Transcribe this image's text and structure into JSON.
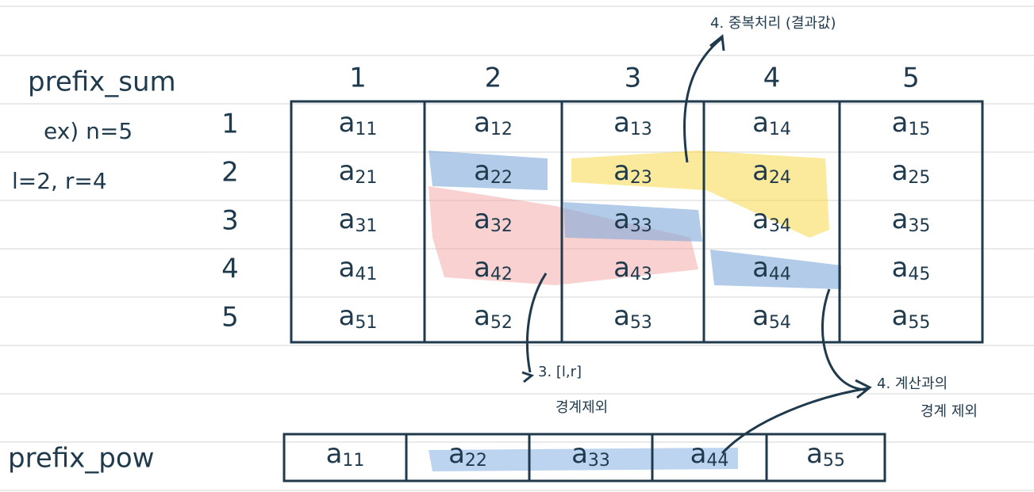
{
  "title": "prefix_sum",
  "example": [
    "ex) n=5",
    "l=2, r=4"
  ],
  "column_headers": [
    "1",
    "2",
    "3",
    "4",
    "5"
  ],
  "row_headers": [
    "1",
    "2",
    "3",
    "4",
    "5"
  ],
  "matrix": [
    [
      {
        "letter": "a",
        "index": "11"
      },
      {
        "letter": "a",
        "index": "12"
      },
      {
        "letter": "a",
        "index": "13"
      },
      {
        "letter": "a",
        "index": "14"
      },
      {
        "letter": "a",
        "index": "15"
      }
    ],
    [
      {
        "letter": "a",
        "index": "21"
      },
      {
        "letter": "a",
        "index": "22"
      },
      {
        "letter": "a",
        "index": "23"
      },
      {
        "letter": "a",
        "index": "24"
      },
      {
        "letter": "a",
        "index": "25"
      }
    ],
    [
      {
        "letter": "a",
        "index": "31"
      },
      {
        "letter": "a",
        "index": "32"
      },
      {
        "letter": "a",
        "index": "33"
      },
      {
        "letter": "a",
        "index": "34"
      },
      {
        "letter": "a",
        "index": "35"
      }
    ],
    [
      {
        "letter": "a",
        "index": "41"
      },
      {
        "letter": "a",
        "index": "42"
      },
      {
        "letter": "a",
        "index": "43"
      },
      {
        "letter": "a",
        "index": "44"
      },
      {
        "letter": "a",
        "index": "45"
      }
    ],
    [
      {
        "letter": "a",
        "index": "51"
      },
      {
        "letter": "a",
        "index": "52"
      },
      {
        "letter": "a",
        "index": "53"
      },
      {
        "letter": "a",
        "index": "54"
      },
      {
        "letter": "a",
        "index": "55"
      }
    ]
  ],
  "pow_label": "prefix_pow",
  "pow_row": [
    {
      "letter": "a",
      "index": "11"
    },
    {
      "letter": "a",
      "index": "22"
    },
    {
      "letter": "a",
      "index": "33"
    },
    {
      "letter": "a",
      "index": "44"
    },
    {
      "letter": "a",
      "index": "55"
    }
  ],
  "notes": {
    "top": "4. 중복처리 (결과값)",
    "middle": [
      "3. [l,r]",
      "경계제외"
    ],
    "right": [
      "4. 계산과의",
      "경계 제외"
    ]
  }
}
